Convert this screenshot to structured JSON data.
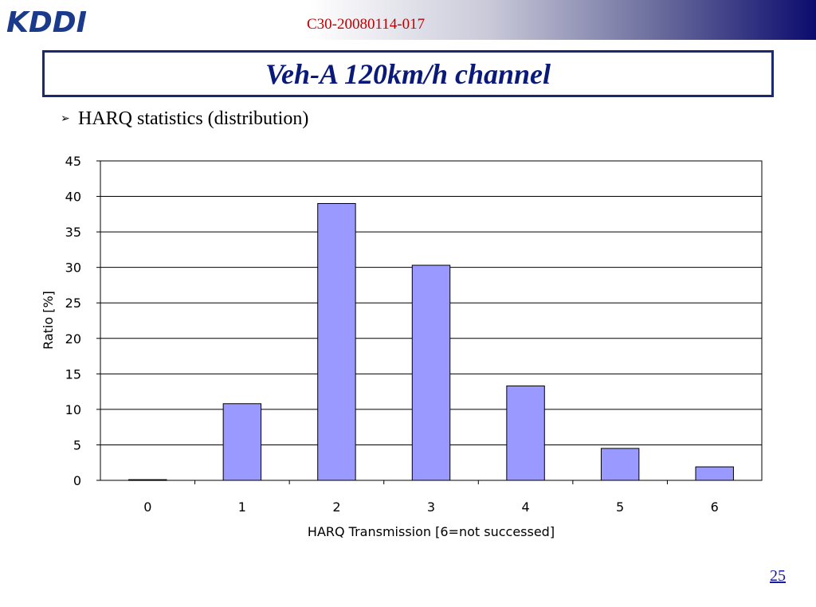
{
  "header": {
    "doc_id": "C30-20080114-017",
    "logo_text": "KDDI",
    "colors": {
      "band_end": "#0b0b6e",
      "doc_id": "#c00000",
      "logo": "#1a3a8c"
    }
  },
  "title": "Veh-A 120km/h channel",
  "bullet": {
    "icon": "arrow-bullet-icon",
    "text": "HARQ statistics (distribution)"
  },
  "chart_data": {
    "type": "bar",
    "title": "",
    "xlabel": "HARQ Transmission [6=not successed]",
    "ylabel": "Ratio [%]",
    "categories": [
      "0",
      "1",
      "2",
      "3",
      "4",
      "5",
      "6"
    ],
    "values": [
      0.1,
      10.8,
      39.0,
      30.3,
      13.3,
      4.5,
      1.9
    ],
    "ylim": [
      0,
      45
    ],
    "yticks": [
      "0",
      "5",
      "10",
      "15",
      "20",
      "25",
      "30",
      "35",
      "40",
      "45"
    ],
    "grid": true,
    "bar_color": "#9999ff"
  },
  "page_number": "25"
}
